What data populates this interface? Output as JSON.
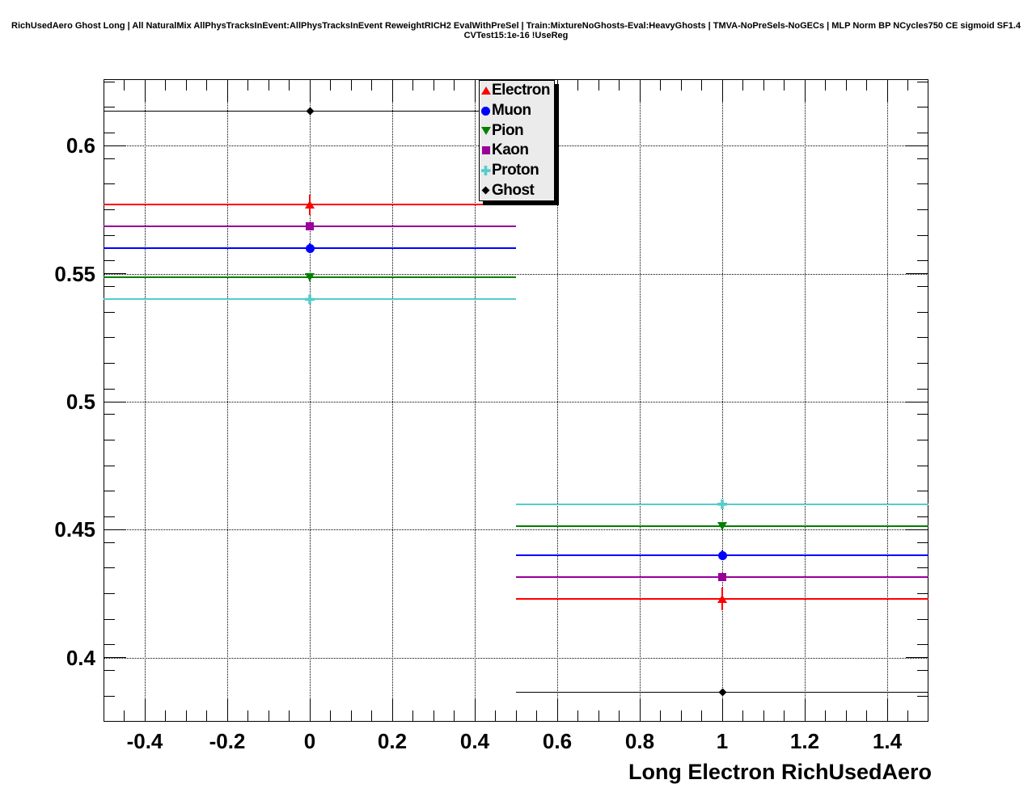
{
  "title": "RichUsedAero Ghost Long | All NaturalMix AllPhysTracksInEvent:AllPhysTracksInEvent ReweightRICH2 EvalWithPreSel | Train:MixtureNoGhosts-Eval:HeavyGhosts | TMVA-NoPreSels-NoGECs | MLP Norm BP NCycles750 CE sigmoid SF1.4 CVTest15:1e-16 !UseReg",
  "chart_data": {
    "type": "errorbar",
    "title": "",
    "xlabel": "Long Electron RichUsedAero",
    "ylabel": "",
    "xlim": [
      -0.5,
      1.5
    ],
    "ylim": [
      0.375,
      0.626
    ],
    "grid": true,
    "x_major_ticks": [
      -0.4,
      -0.2,
      0,
      0.2,
      0.4,
      0.6,
      0.8,
      1,
      1.2,
      1.4
    ],
    "x_major_labels": [
      "-0.4",
      "-0.2",
      "0",
      "0.2",
      "0.4",
      "0.6",
      "0.8",
      "1",
      "1.2",
      "1.4"
    ],
    "x_minor_step": 0.05,
    "y_major_ticks": [
      0.4,
      0.45,
      0.5,
      0.55,
      0.6
    ],
    "y_major_labels": [
      "0.4",
      "0.45",
      "0.5",
      "0.55",
      "0.6"
    ],
    "y_minor_step": 0.01,
    "bins": [
      {
        "center": 0,
        "low": -0.5,
        "high": 0.5
      },
      {
        "center": 1,
        "low": 0.5,
        "high": 1.5
      }
    ],
    "series": [
      {
        "name": "Electron",
        "color": "#ff0000",
        "marker": "triangle-up",
        "values": [
          0.577,
          0.423
        ],
        "yerr": [
          0.004,
          0.0045
        ]
      },
      {
        "name": "Muon",
        "color": "#0000ff",
        "marker": "circle",
        "values": [
          0.56,
          0.44
        ],
        "yerr": [
          0.002,
          0.002
        ]
      },
      {
        "name": "Pion",
        "color": "#008000",
        "marker": "triangle-down",
        "values": [
          0.5485,
          0.4515
        ],
        "yerr": [
          0.0015,
          0.0015
        ]
      },
      {
        "name": "Kaon",
        "color": "#990099",
        "marker": "square",
        "values": [
          0.5685,
          0.4315
        ],
        "yerr": [
          0.0015,
          0.0015
        ]
      },
      {
        "name": "Proton",
        "color": "#55cccc",
        "marker": "cross",
        "values": [
          0.54,
          0.46
        ],
        "yerr": [
          0.0015,
          0.0015
        ]
      },
      {
        "name": "Ghost",
        "color": "#000000",
        "marker": "diamond",
        "values": [
          0.6135,
          0.3865
        ],
        "yerr": [
          0.0008,
          0.0008
        ]
      }
    ],
    "legend": {
      "position": "top-right-inner",
      "entries": [
        "Electron",
        "Muon",
        "Pion",
        "Kaon",
        "Proton",
        "Ghost"
      ]
    }
  }
}
